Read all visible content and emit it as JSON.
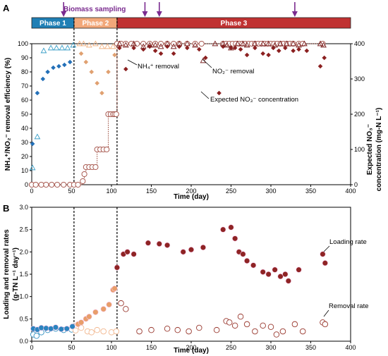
{
  "figure": {
    "phases": [
      {
        "label": "Phase 1",
        "start": 0,
        "end": 53,
        "color": "#1f7fb5"
      },
      {
        "label": "Phase 2",
        "start": 53,
        "end": 107,
        "color": "#f2a87a"
      },
      {
        "label": "Phase 3",
        "start": 107,
        "end": 400,
        "color": "#c03232"
      }
    ],
    "sampling_label": "Biomass sampling",
    "sampling_days": [
      40,
      142,
      160,
      330
    ],
    "phase_boundaries": [
      53,
      107
    ]
  },
  "chart_data": [
    {
      "panel": "A",
      "type": "scatter",
      "xlabel": "Time (day)",
      "xlim": [
        0,
        400
      ],
      "xticks": [
        0,
        50,
        100,
        150,
        200,
        250,
        300,
        350,
        400
      ],
      "ylabel_left": "NH₄⁺/NO₂⁻ removal efficiency (%)",
      "ylim_left": [
        0,
        100
      ],
      "yticks_left": [
        0,
        10,
        20,
        30,
        40,
        50,
        60,
        70,
        80,
        90,
        100
      ],
      "ylabel_right_line1": "Expected NO₃⁻",
      "ylabel_right_line2": "concentration (mg-N L⁻¹)",
      "ylim_right": [
        0,
        400
      ],
      "yticks_right": [
        0,
        100,
        200,
        300,
        400
      ],
      "annotations": {
        "nh4": "NH₄⁺ removal",
        "no2": "NO₂⁻ removal",
        "no3": "Expected NO₃⁻ concentration"
      },
      "series": [
        {
          "key": "nh4_removal",
          "marker": "diamond",
          "x": [
            1,
            7,
            14,
            20,
            27,
            34,
            41,
            48,
            62,
            68,
            75,
            82,
            88,
            96,
            104,
            110,
            118,
            128,
            140,
            148,
            155,
            162,
            170,
            178,
            185,
            195,
            210,
            218,
            235,
            240,
            250,
            255,
            262,
            270,
            280,
            290,
            297,
            303,
            310,
            318,
            328,
            335,
            345,
            362,
            367
          ],
          "y": [
            29,
            65,
            75,
            80,
            83,
            84,
            85,
            87,
            93,
            87,
            80,
            72,
            65,
            80,
            92,
            97,
            82,
            97,
            96,
            98,
            95,
            93,
            98,
            93,
            98,
            97,
            96,
            90,
            65,
            98,
            97,
            97,
            96,
            92,
            97,
            93,
            92,
            97,
            95,
            97,
            95,
            96,
            95,
            84,
            90
          ]
        },
        {
          "key": "no2_removal",
          "marker": "triangle",
          "x": [
            1,
            7,
            15,
            24,
            31,
            38,
            45,
            52,
            60,
            65,
            72,
            80,
            88,
            95,
            102,
            110,
            118,
            128,
            140,
            148,
            155,
            162,
            170,
            178,
            185,
            195,
            205,
            215,
            230,
            240,
            245,
            250,
            258,
            265,
            270,
            280,
            290,
            297,
            305,
            312,
            320,
            328,
            335,
            342,
            362,
            366
          ],
          "y": [
            12,
            34,
            95,
            97,
            97,
            97,
            97,
            99,
            100,
            100,
            99,
            100,
            98,
            98,
            98,
            100,
            99,
            100,
            98,
            99,
            99,
            98,
            100,
            98,
            100,
            100,
            99,
            88,
            100,
            100,
            99,
            97,
            100,
            100,
            99,
            100,
            100,
            100,
            99,
            100,
            100,
            100,
            99,
            100,
            100,
            99
          ]
        },
        {
          "key": "no3_expected",
          "marker": "circle_open",
          "axis": "right",
          "x": [
            0,
            5,
            12,
            18,
            25,
            32,
            40,
            48,
            53,
            58,
            64,
            66,
            68,
            72,
            76,
            80,
            82,
            86,
            90,
            94,
            96,
            99,
            102,
            104,
            106,
            107,
            112,
            118,
            125,
            132,
            140,
            148,
            155,
            162,
            170,
            178,
            185,
            195,
            205,
            213,
            240,
            244,
            248,
            252,
            256,
            260,
            264,
            268,
            272,
            276,
            280,
            284,
            288,
            292,
            296,
            300,
            304,
            308,
            312,
            316,
            320,
            324,
            328,
            335,
            340,
            365
          ],
          "y": [
            0,
            0,
            0,
            0,
            0,
            0,
            0,
            0,
            0,
            0,
            10,
            30,
            50,
            50,
            50,
            50,
            100,
            100,
            100,
            100,
            200,
            200,
            200,
            200,
            200,
            400,
            400,
            400,
            400,
            400,
            400,
            400,
            400,
            400,
            400,
            400,
            400,
            400,
            400,
            400,
            400,
            400,
            400,
            400,
            400,
            400,
            400,
            400,
            400,
            400,
            400,
            400,
            400,
            400,
            400,
            400,
            400,
            400,
            400,
            400,
            400,
            400,
            400,
            400,
            400,
            400
          ]
        }
      ]
    },
    {
      "panel": "B",
      "type": "scatter",
      "xlabel": "Time (day)",
      "xlim": [
        0,
        400
      ],
      "xticks": [
        0,
        50,
        100,
        150,
        200,
        250,
        300,
        350,
        400
      ],
      "ylabel_line1": "Loading and removal rates",
      "ylabel_line2": "(g-TN L⁻¹ day⁻¹)",
      "ylim": [
        0,
        3.0
      ],
      "yticks": [
        0,
        0.5,
        1.0,
        1.5,
        2.0,
        2.5,
        3.0
      ],
      "annotations": {
        "loading": "Loading rate",
        "removal": "Removal rate"
      },
      "series": [
        {
          "key": "loading_rate",
          "marker": "circle_filled",
          "x": [
            2,
            7,
            12,
            18,
            24,
            30,
            37,
            44,
            51,
            58,
            62,
            68,
            72,
            80,
            90,
            97,
            102,
            104,
            107,
            115,
            120,
            128,
            146,
            160,
            170,
            190,
            200,
            215,
            240,
            250,
            255,
            260,
            265,
            270,
            278,
            290,
            297,
            305,
            312,
            318,
            322,
            335,
            365,
            368
          ],
          "y": [
            0.28,
            0.26,
            0.3,
            0.29,
            0.28,
            0.31,
            0.27,
            0.28,
            0.33,
            0.38,
            0.42,
            0.5,
            0.55,
            0.65,
            0.72,
            0.82,
            1.15,
            1.18,
            1.65,
            1.95,
            2.0,
            1.95,
            2.2,
            2.18,
            2.15,
            2.0,
            2.05,
            2.1,
            2.5,
            2.55,
            2.3,
            2.0,
            1.95,
            1.8,
            1.7,
            1.55,
            1.5,
            1.6,
            1.45,
            1.5,
            1.35,
            1.6,
            1.95,
            1.75
          ]
        },
        {
          "key": "removal_rate",
          "marker": "circle_open",
          "x": [
            2,
            6,
            12,
            20,
            30,
            40,
            50,
            55,
            62,
            70,
            75,
            82,
            90,
            100,
            106,
            112,
            118,
            135,
            150,
            170,
            183,
            197,
            210,
            232,
            244,
            248,
            255,
            262,
            270,
            280,
            290,
            300,
            307,
            315,
            330,
            340,
            365,
            368
          ],
          "y": [
            0.15,
            0.12,
            0.2,
            0.25,
            0.28,
            0.25,
            0.26,
            0.24,
            0.3,
            0.22,
            0.2,
            0.25,
            0.22,
            0.2,
            0.22,
            0.85,
            0.72,
            0.22,
            0.25,
            0.28,
            0.25,
            0.22,
            0.3,
            0.25,
            0.45,
            0.42,
            0.35,
            0.55,
            0.38,
            0.22,
            0.35,
            0.32,
            0.15,
            0.22,
            0.38,
            0.22,
            0.42,
            0.38
          ]
        }
      ]
    }
  ]
}
